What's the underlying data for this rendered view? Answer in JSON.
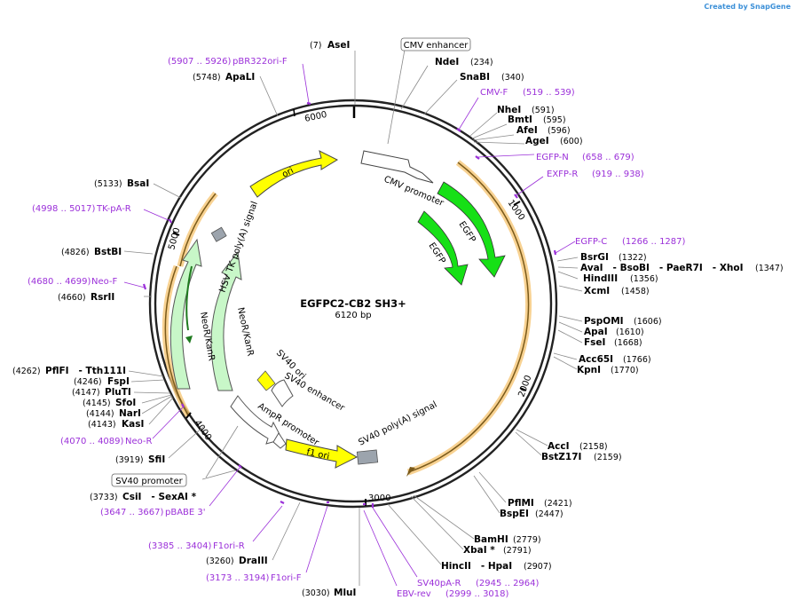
{
  "credit": {
    "prefix": "Created by",
    "brand": "SnapGene"
  },
  "plasmid": {
    "name": "EGFPC2-CB2 SH3+",
    "size_label": "6120 bp",
    "length": 6120
  },
  "ticks": [
    "1000",
    "2000",
    "3000",
    "4000",
    "5000",
    "6000"
  ],
  "boxed_labels": {
    "cmv_enhancer": "CMV enhancer",
    "sv40_promoter": "SV40 promoter"
  },
  "features": {
    "cmv_promoter": "CMV promoter",
    "egfp_outer": "EGFP",
    "egfp_inner": "EGFP",
    "sv40_polya": "SV40 poly(A) signal",
    "f1_ori": "f1 ori",
    "ampr_promoter": "AmpR promoter",
    "sv40_ori": "SV40 ori",
    "sv40_enhancer": "SV40 enhancer",
    "neor_inner": "NeoR/KanR",
    "neor_outer": "NeoR/KanR",
    "hsv_tk": "HSV TK poly(A) signal",
    "ori": "ori"
  },
  "sites": [
    {
      "name": "AseI",
      "pos": "(7)"
    },
    {
      "name": "NdeI",
      "pos": "(234)"
    },
    {
      "name": "SnaBI",
      "pos": "(340)"
    },
    {
      "name": "NheI",
      "pos": "(591)"
    },
    {
      "name": "BmtI",
      "pos": "(595)"
    },
    {
      "name": "AfeI",
      "pos": "(596)"
    },
    {
      "name": "AgeI",
      "pos": "(600)"
    },
    {
      "name": "BsrGI",
      "pos": "(1322)"
    },
    {
      "name": "AvaI   - BsoBI   - PaeR7I   - XhoI",
      "pos": "(1347)"
    },
    {
      "name": "HindIII",
      "pos": "(1356)"
    },
    {
      "name": "XcmI",
      "pos": "(1458)"
    },
    {
      "name": "PspOMI",
      "pos": "(1606)"
    },
    {
      "name": "ApaI",
      "pos": "(1610)"
    },
    {
      "name": "FseI",
      "pos": "(1668)"
    },
    {
      "name": "Acc65I",
      "pos": "(1766)"
    },
    {
      "name": "KpnI",
      "pos": "(1770)"
    },
    {
      "name": "AccI",
      "pos": "(2158)"
    },
    {
      "name": "BstZ17I",
      "pos": "(2159)"
    },
    {
      "name": "PflMI",
      "pos": "(2421)"
    },
    {
      "name": "BspEI",
      "pos": "(2447)"
    },
    {
      "name": "BamHI",
      "pos": "(2779)"
    },
    {
      "name": "XbaI *",
      "pos": "(2791)"
    },
    {
      "name": "HincII   - HpaI",
      "pos": "(2907)"
    },
    {
      "name": "MluI",
      "pos": "(3030)"
    },
    {
      "name": "DraIII",
      "pos": "(3260)"
    },
    {
      "name": "CsiI   - SexAI *",
      "pos": "(3733)"
    },
    {
      "name": "SfiI",
      "pos": "(3919)"
    },
    {
      "name": "KasI",
      "pos": "(4143)"
    },
    {
      "name": "NarI",
      "pos": "(4144)"
    },
    {
      "name": "SfoI",
      "pos": "(4145)"
    },
    {
      "name": "PluTI",
      "pos": "(4147)"
    },
    {
      "name": "FspI",
      "pos": "(4246)"
    },
    {
      "name": "PflFI   - Tth111I",
      "pos": "(4262)"
    },
    {
      "name": "RsrII",
      "pos": "(4660)"
    },
    {
      "name": "BstBI",
      "pos": "(4826)"
    },
    {
      "name": "BsaI",
      "pos": "(5133)"
    },
    {
      "name": "ApaLI",
      "pos": "(5748)"
    }
  ],
  "primers": [
    {
      "name": "pBR322ori-F",
      "range": "(5907 .. 5926)"
    },
    {
      "name": "CMV-F",
      "range": "(519 .. 539)"
    },
    {
      "name": "EGFP-N",
      "range": "(658 .. 679)"
    },
    {
      "name": "EXFP-R",
      "range": "(919 .. 938)"
    },
    {
      "name": "EGFP-C",
      "range": "(1266 .. 1287)"
    },
    {
      "name": "SV40pA-R",
      "range": "(2945 .. 2964)"
    },
    {
      "name": "EBV-rev",
      "range": "(2999 .. 3018)"
    },
    {
      "name": "F1ori-F",
      "range": "(3173 .. 3194)"
    },
    {
      "name": "F1ori-R",
      "range": "(3385 .. 3404)"
    },
    {
      "name": "pBABE 3'",
      "range": "(3647 .. 3667)"
    },
    {
      "name": "Neo-R",
      "range": "(4070 .. 4089)"
    },
    {
      "name": "Neo-F",
      "range": "(4680 .. 4699)"
    },
    {
      "name": "TK-pA-R",
      "range": "(4998 .. 5017)"
    }
  ],
  "colors": {
    "ring": "#222222",
    "egfp": "#16e016",
    "neor": "#c8f7c8",
    "ori": "#ffff00",
    "primer": "#9b30d9",
    "orf": "#f5c36e"
  }
}
